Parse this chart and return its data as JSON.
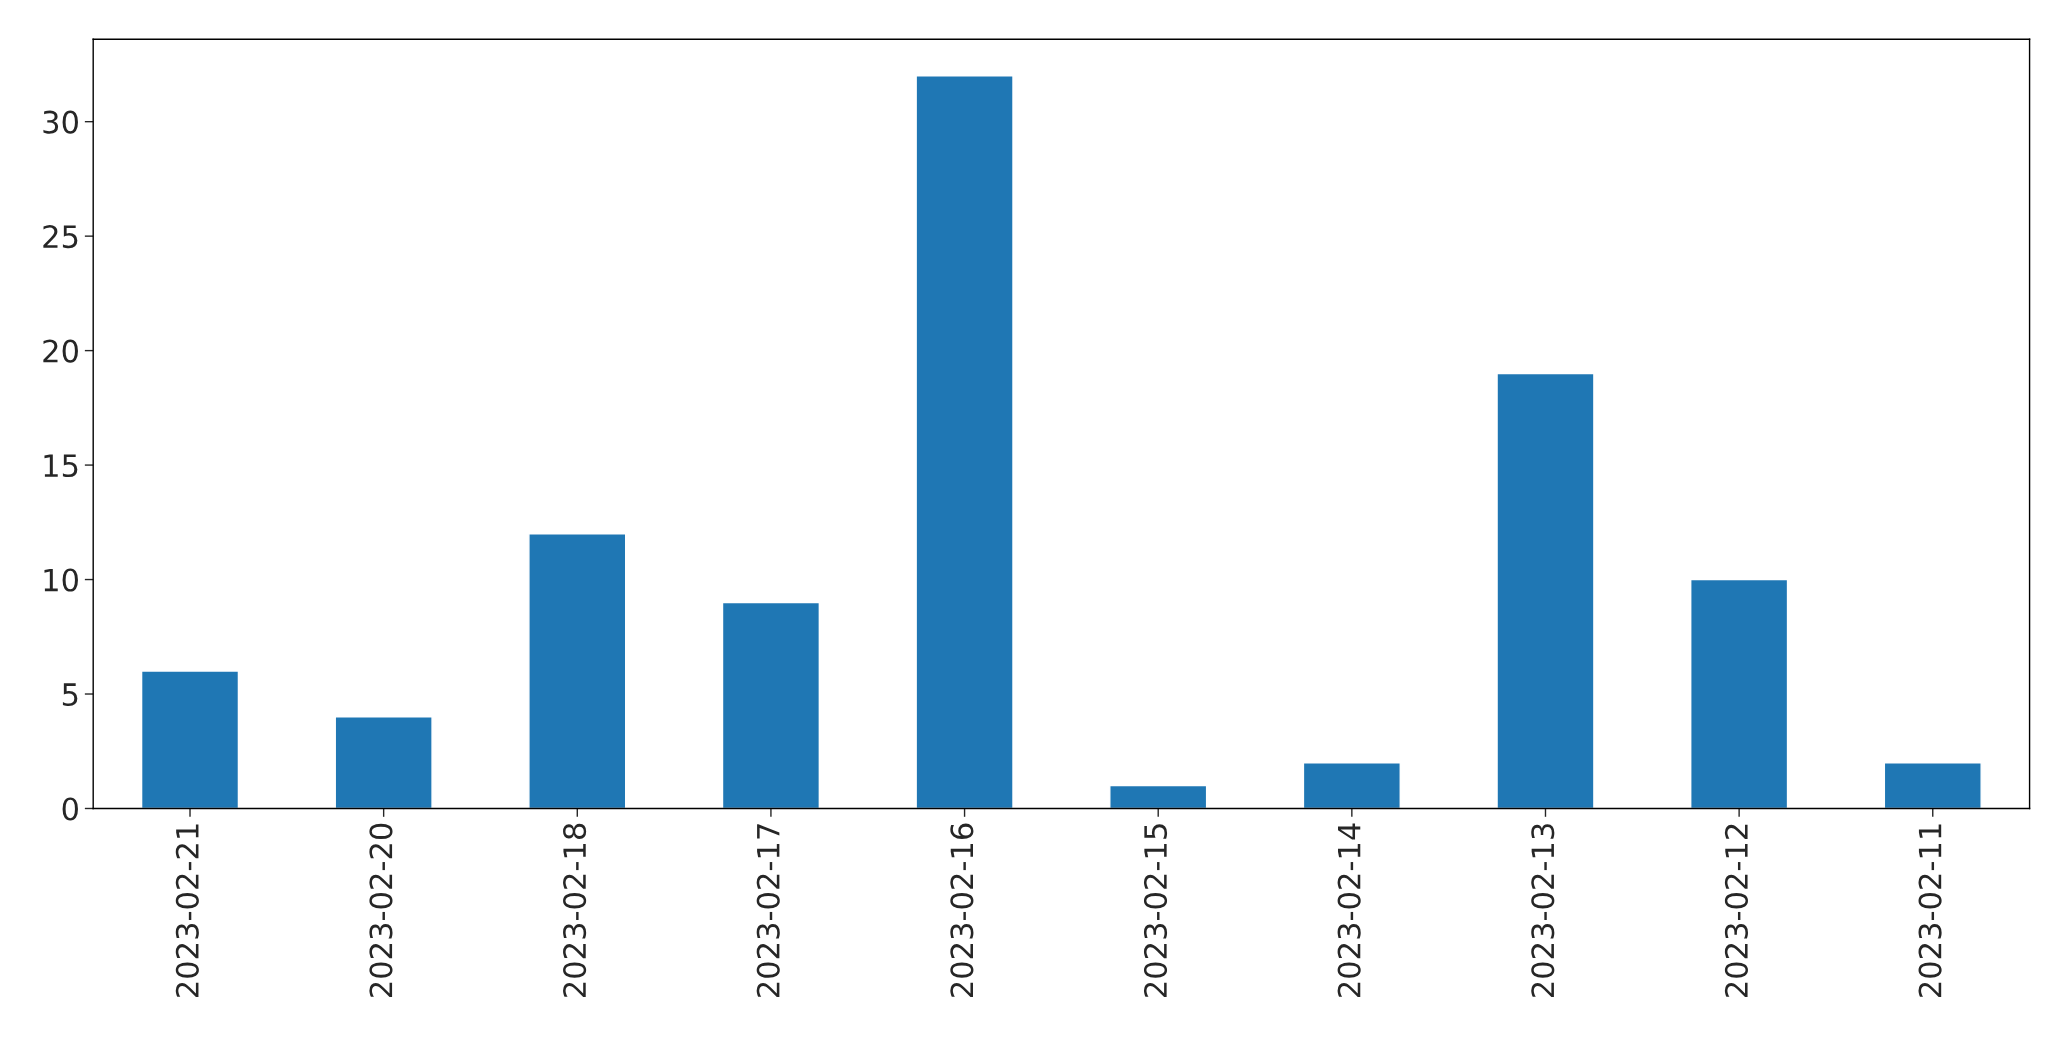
{
  "chart_data": {
    "type": "bar",
    "categories": [
      "2023-02-21",
      "2023-02-20",
      "2023-02-18",
      "2023-02-17",
      "2023-02-16",
      "2023-02-15",
      "2023-02-14",
      "2023-02-13",
      "2023-02-12",
      "2023-02-11"
    ],
    "values": [
      6,
      4,
      12,
      9,
      32,
      1,
      2,
      19,
      10,
      2
    ],
    "color": "#1f77b4",
    "ylim": [
      0,
      33.6
    ],
    "yticks": [
      0,
      5,
      10,
      15,
      20,
      25,
      30
    ],
    "grid": false
  }
}
